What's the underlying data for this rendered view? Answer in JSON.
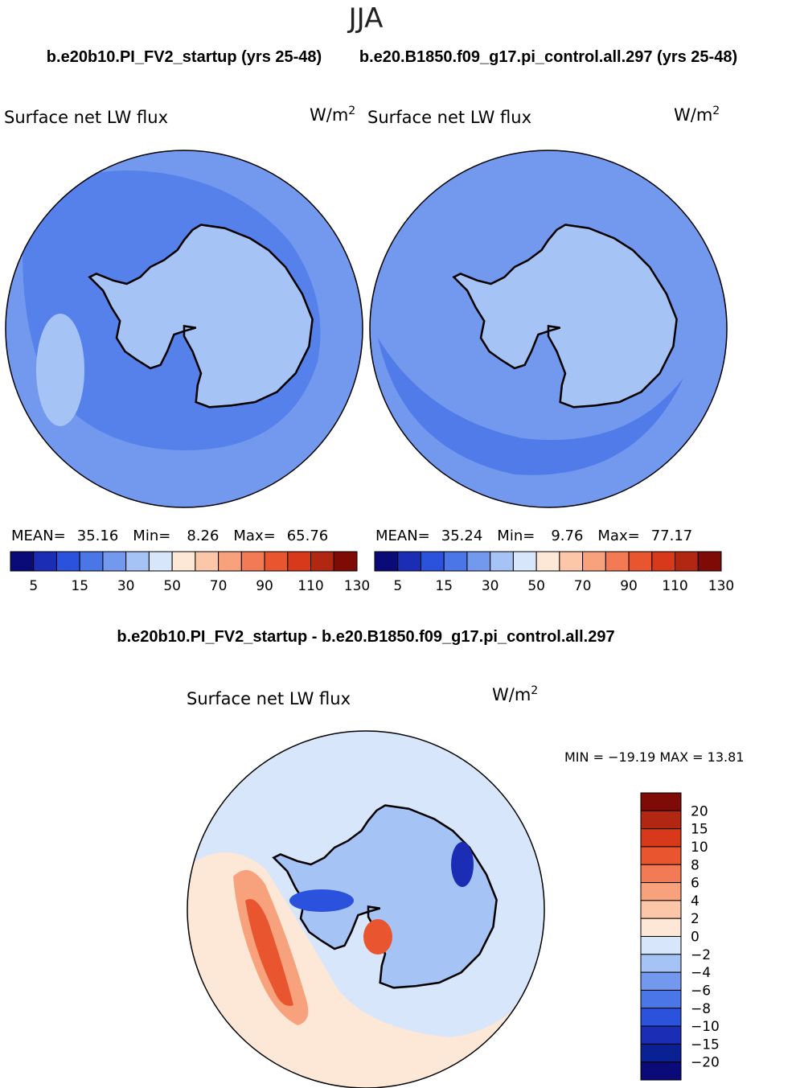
{
  "season": "JJA",
  "chart_data": [
    {
      "type": "heatmap",
      "projection": "south-polar-stereographic",
      "header": "b.e20b10.PI_FV2_startup (yrs 25-48)",
      "title": "Surface net LW flux",
      "units": "W/m",
      "units_sup": "2",
      "stats": {
        "mean_label": "MEAN=",
        "mean": "35.16",
        "min_label": "Min=",
        "min": "8.26",
        "max_label": "Max=",
        "max": "65.76"
      },
      "colorbar_ticks": [
        "5",
        "15",
        "30",
        "50",
        "70",
        "90",
        "110",
        "130"
      ],
      "colorbar_colors": [
        "#0a0a78",
        "#1a2db4",
        "#2a52dc",
        "#4a76e8",
        "#7399ef",
        "#a6c3f5",
        "#d7e6fb",
        "#fde7d6",
        "#fbc7a8",
        "#f7a27d",
        "#f27b55",
        "#e9552f",
        "#d8391a",
        "#b12712",
        "#7e0b05"
      ],
      "field_colors": {
        "ocean": "#7399ef",
        "band": "#4a76e8",
        "continent": "#a6c3f5"
      }
    },
    {
      "type": "heatmap",
      "projection": "south-polar-stereographic",
      "header": "b.e20.B1850.f09_g17.pi_control.all.297 (yrs 25-48)",
      "title": "Surface net LW flux",
      "units": "W/m",
      "units_sup": "2",
      "stats": {
        "mean_label": "MEAN=",
        "mean": "35.24",
        "min_label": "Min=",
        "min": "9.76",
        "max_label": "Max=",
        "max": "77.17"
      },
      "colorbar_ticks": [
        "5",
        "15",
        "30",
        "50",
        "70",
        "90",
        "110",
        "130"
      ],
      "colorbar_colors": [
        "#0a0a78",
        "#1a2db4",
        "#2a52dc",
        "#4a76e8",
        "#7399ef",
        "#a6c3f5",
        "#d7e6fb",
        "#fde7d6",
        "#fbc7a8",
        "#f7a27d",
        "#f27b55",
        "#e9552f",
        "#d8391a",
        "#b12712",
        "#7e0b05"
      ],
      "field_colors": {
        "ocean": "#7399ef",
        "band": "#4a76e8",
        "continent": "#a6c3f5"
      }
    },
    {
      "type": "heatmap",
      "projection": "south-polar-stereographic",
      "header": "b.e20b10.PI_FV2_startup - b.e20.B1850.f09_g17.pi_control.all.297",
      "title": "Surface net LW flux",
      "units": "W/m",
      "units_sup": "2",
      "minmax_text": "MIN = −19.19  MAX =   13.81",
      "colorbar_ticks": [
        "20",
        "15",
        "10",
        "8",
        "6",
        "4",
        "2",
        "0",
        "−2",
        "−4",
        "−6",
        "−8",
        "−10",
        "−15",
        "−20"
      ],
      "colorbar_colors": [
        "#7e0b05",
        "#b12712",
        "#d8391a",
        "#e9552f",
        "#f27b55",
        "#f7a27d",
        "#fbc7a8",
        "#fde7d6",
        "#d7e6fb",
        "#a6c3f5",
        "#7399ef",
        "#4a76e8",
        "#2a52dc",
        "#1a2db4",
        "#0a2194",
        "#0a0a78"
      ]
    }
  ]
}
